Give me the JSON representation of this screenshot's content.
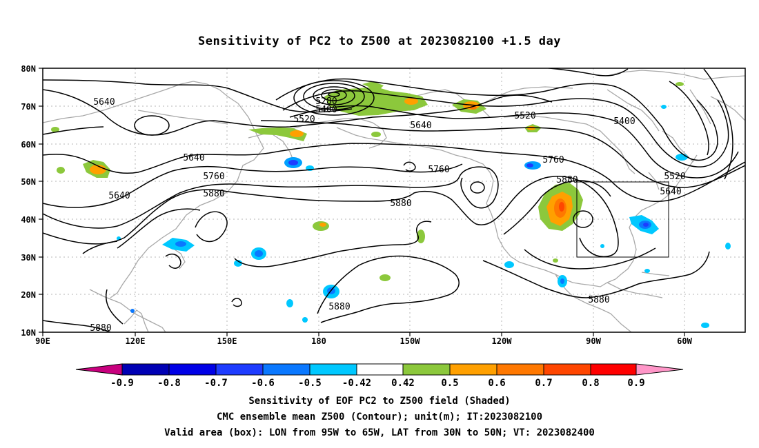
{
  "title": "Sensitivity of PC2 to Z500 at 2023082100 +1.5 day",
  "lat_labels": [
    "80N",
    "70N",
    "60N",
    "50N",
    "40N",
    "30N",
    "20N",
    "10N"
  ],
  "lon_labels": [
    "90E",
    "120E",
    "150E",
    "180",
    "150W",
    "120W",
    "90W",
    "60W"
  ],
  "contour_labels": [
    "5640",
    "5280",
    "5400",
    "5520",
    "5640",
    "5520",
    "5400",
    "5640",
    "5760",
    "5760",
    "5880",
    "5760",
    "5520",
    "5640",
    "5640",
    "5880",
    "5880",
    "5880",
    "5880",
    "5880"
  ],
  "colorbar": {
    "labels": [
      "-0.9",
      "-0.8",
      "-0.7",
      "-0.6",
      "-0.5",
      "-0.42",
      "0.42",
      "0.5",
      "0.6",
      "0.7",
      "0.8",
      "0.9"
    ],
    "colors": [
      "#c8007e",
      "#0000b4",
      "#0000e6",
      "#1e3cff",
      "#0a78ff",
      "#00a0ff",
      "#00c8ff",
      "#ffffff",
      "#8cc83c",
      "#ffa000",
      "#ff7800",
      "#ff4600",
      "#ff0000",
      "#ff96c8"
    ]
  },
  "valid_box": {
    "lon_min": -95,
    "lon_max": -65,
    "lat_min": 30,
    "lat_max": 50
  },
  "captions": [
    "Sensitivity of EOF PC2 to Z500 field (Shaded)",
    "CMC ensemble mean Z500 (Contour); unit(m); IT:2023082100",
    "Valid area (box): LON from 95W to 65W, LAT from 30N to 50N; VT: 2023082400"
  ]
}
